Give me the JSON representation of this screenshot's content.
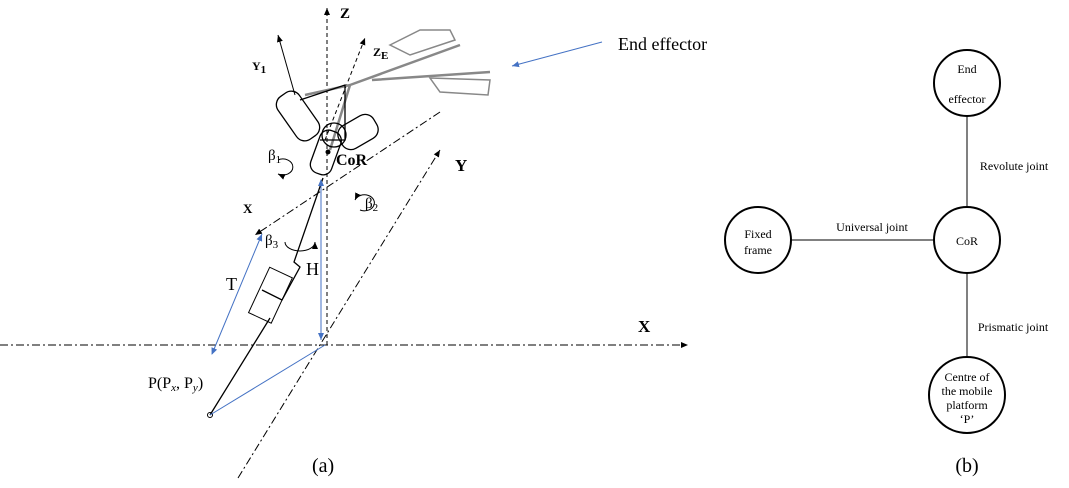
{
  "diagram_a": {
    "z_axis": "Z",
    "ze_axis": {
      "main": "Z",
      "sub": "E"
    },
    "y1_axis": {
      "main": "Y",
      "sub": "1"
    },
    "end_effector": "End effector",
    "beta1": {
      "main": "β",
      "sub": "1"
    },
    "cor": "CoR",
    "x_small": "X",
    "beta2": {
      "main": "β",
      "sub": "2"
    },
    "y_axis": "Y",
    "beta3": {
      "main": "β",
      "sub": "3"
    },
    "t_label": "T",
    "h_label": "H",
    "x_axis": "X",
    "p_label": "P(P",
    "p_x": "x",
    "p_sep": ", P",
    "p_y": "y",
    "p_end": ")",
    "caption": "(a)"
  },
  "diagram_b": {
    "nodes": [
      {
        "lines": [
          "End",
          "effector"
        ]
      },
      {
        "lines": [
          "Fixed",
          "frame"
        ]
      },
      {
        "lines": [
          "CoR"
        ]
      },
      {
        "lines": [
          "Centre of",
          "the mobile",
          "platform",
          "‘P’"
        ]
      }
    ],
    "edges": [
      "Revolute joint",
      "Universal joint",
      "Prismatic joint"
    ],
    "caption": "(b)"
  }
}
